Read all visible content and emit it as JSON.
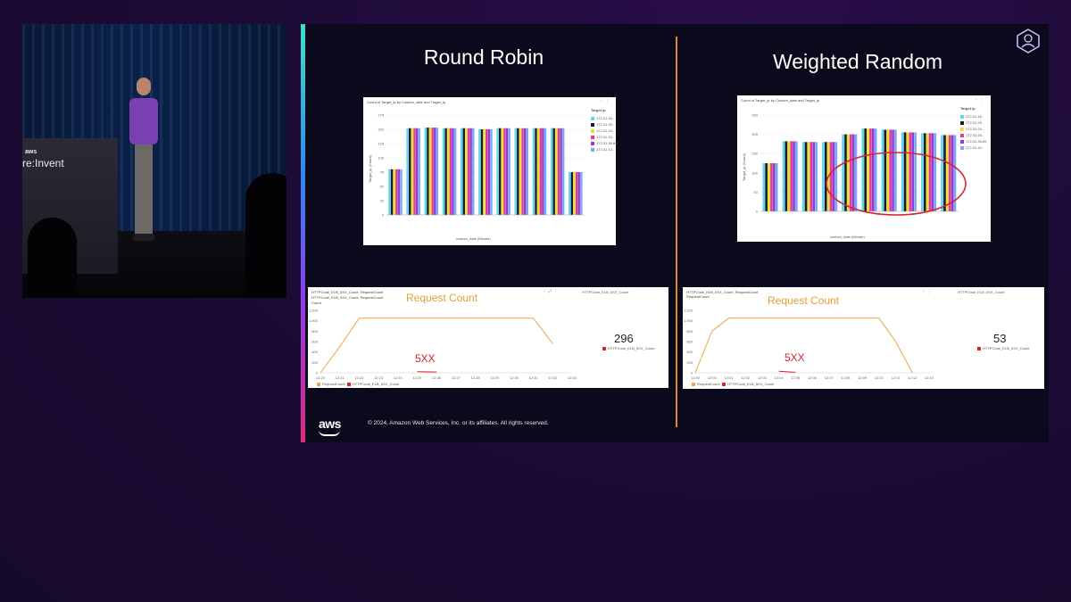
{
  "video": {
    "podium_brand": "aws",
    "podium_text": "re:Invent"
  },
  "slide": {
    "left_title": "Round Robin",
    "right_title": "Weighted Random",
    "copyright": "© 2024, Amazon Web Services, Inc. or its affiliates. All rights reserved.",
    "footer_logo": "aws",
    "badge_icon": "user-badge-icon",
    "accent_colors": [
      "#3be3c8",
      "#2b8cf0",
      "#8a3df0",
      "#e0287d"
    ],
    "divider_color": "#e08a2b"
  },
  "bar_panels": {
    "left": {
      "title": "Count of Target_ip by Custom_date and Target_ip",
      "y_title": "Target_ip (Count)",
      "x_title": "custom_date (Minute)",
      "legend_title": "Target ip",
      "legend_items": [
        "172.31.16..",
        "172.31.29..",
        "172.31.24..",
        "172.31.34..",
        "172.31.36.69",
        "172.31.42.."
      ]
    },
    "right": {
      "title": "Count of Target_ip by Custom_date and Target_ip",
      "y_title": "Target_ip (Count)",
      "x_title": "custom_date (Minute)",
      "legend_title": "Target ip",
      "legend_items": [
        "172.31.16..",
        "172.31.29..",
        "172.31.24..",
        "172.31.34..",
        "172.31.36.69",
        "172.31.42.."
      ]
    }
  },
  "line_panels": {
    "left": {
      "title": "HTTPCode_ELB_5XX_Count, RequestCount",
      "subtitle": "HTTPCode_ELB_5XX_Count, RequestCount",
      "axis_caption": "Count",
      "side_title": "HTTPCode_ELB_5XX_Count",
      "request_annotation": "Request Count",
      "error_annotation": "5XX",
      "big_count": "296",
      "big_count_label": "HTTPCode_ELB_5XX_Count",
      "legend": [
        "RequestCount",
        "HTTPCode_ELB_5XX_Count"
      ]
    },
    "right": {
      "title": "HTTPCode_ELB_5XX_Count, RequestCount",
      "subtitle": "RequestCount",
      "axis_caption": "",
      "side_title": "HTTPCode_ELB_5XX_Count",
      "request_annotation": "Request Count",
      "error_annotation": "5XX",
      "big_count": "53",
      "big_count_label": "HTTPCode_ELB_5XX_Count",
      "legend": [
        "RequestCount",
        "HTTPCode_ELB_5XX_Count"
      ]
    }
  },
  "chart_data": [
    {
      "type": "bar",
      "panel": "left",
      "title": "Count of Target_ip by Custom_date and Target_ip",
      "xlabel": "custom_date (Minute)",
      "ylabel": "Target_ip (Count)",
      "ylim": [
        0,
        175
      ],
      "yticks": [
        0,
        25,
        50,
        75,
        100,
        125,
        150,
        175
      ],
      "series_colors": [
        "#5fd9e8",
        "#1a1a30",
        "#e9e12a",
        "#e63a97",
        "#8b3fd9",
        "#7ea6f2"
      ],
      "groups": [
        [
          80,
          80,
          80,
          80,
          80,
          80
        ],
        [
          152,
          152,
          152,
          152,
          152,
          152
        ],
        [
          153,
          153,
          153,
          153,
          153,
          153
        ],
        [
          152,
          152,
          152,
          152,
          152,
          152
        ],
        [
          152,
          152,
          152,
          152,
          152,
          152
        ],
        [
          150,
          150,
          150,
          150,
          150,
          150
        ],
        [
          152,
          152,
          152,
          152,
          152,
          152
        ],
        [
          152,
          152,
          152,
          152,
          152,
          152
        ],
        [
          152,
          152,
          152,
          152,
          152,
          152
        ],
        [
          152,
          152,
          152,
          152,
          152,
          152
        ],
        [
          75,
          75,
          75,
          75,
          75,
          75
        ]
      ]
    },
    {
      "type": "bar",
      "panel": "right",
      "title": "Count of Target_ip by Custom_date and Target_ip",
      "xlabel": "custom_date (Minute)",
      "ylabel": "Target_ip (Count)",
      "ylim": [
        0,
        250
      ],
      "yticks": [
        0,
        50,
        100,
        150,
        200,
        250
      ],
      "series_colors": [
        "#5fd9e8",
        "#1a1a30",
        "#e9e12a",
        "#e63a97",
        "#8b3fd9",
        "#7ea6f2"
      ],
      "groups": [
        [
          125,
          125,
          125,
          125,
          125,
          125
        ],
        [
          182,
          182,
          182,
          182,
          182,
          182
        ],
        [
          180,
          180,
          180,
          180,
          180,
          180
        ],
        [
          180,
          180,
          180,
          180,
          180,
          180
        ],
        [
          200,
          200,
          200,
          200,
          200,
          200
        ],
        [
          215,
          215,
          215,
          215,
          215,
          215
        ],
        [
          212,
          212,
          212,
          212,
          212,
          212
        ],
        [
          205,
          205,
          205,
          205,
          205,
          205
        ],
        [
          203,
          203,
          203,
          203,
          203,
          203
        ],
        [
          198,
          198,
          198,
          198,
          198,
          198
        ]
      ]
    },
    {
      "type": "line",
      "panel": "left",
      "ylim": [
        0,
        1200
      ],
      "yticks": [
        0,
        200,
        400,
        600,
        800,
        1000,
        1200
      ],
      "x": [
        "12:20",
        "12:21",
        "12:22",
        "12:23",
        "12:24",
        "12:25",
        "12:26",
        "12:27",
        "12:28",
        "12:29",
        "12:30",
        "12:31",
        "12:32",
        "12:33"
      ],
      "series": [
        {
          "name": "RequestCount",
          "color": "#e8a64a",
          "values": [
            0,
            500,
            1050,
            1050,
            1050,
            1050,
            1050,
            1050,
            1050,
            1050,
            1050,
            1050,
            560,
            null
          ]
        },
        {
          "name": "HTTPCode_ELB_5XX_Count",
          "color": "#d8232a",
          "values": [
            null,
            null,
            null,
            null,
            null,
            20,
            15,
            null,
            null,
            null,
            null,
            null,
            null,
            null
          ]
        }
      ]
    },
    {
      "type": "line",
      "panel": "right",
      "ylim": [
        0,
        1200
      ],
      "yticks": [
        0,
        200,
        400,
        600,
        800,
        1000,
        1200
      ],
      "x": [
        "11:59",
        "12:00",
        "12:01",
        "12:02",
        "12:03",
        "12:04",
        "12:05",
        "12:06",
        "12:07",
        "12:08",
        "12:09",
        "12:10",
        "12:11",
        "12:12",
        "12:13"
      ],
      "series": [
        {
          "name": "RequestCount",
          "color": "#e8a64a",
          "values": [
            0,
            800,
            1050,
            1050,
            1050,
            1050,
            1050,
            1050,
            1050,
            1050,
            1050,
            1050,
            600,
            0,
            null
          ]
        },
        {
          "name": "HTTPCode_ELB_5XX_Count",
          "color": "#d8232a",
          "values": [
            null,
            null,
            null,
            null,
            null,
            30,
            10,
            null,
            null,
            null,
            null,
            null,
            null,
            null,
            null
          ]
        }
      ]
    }
  ]
}
